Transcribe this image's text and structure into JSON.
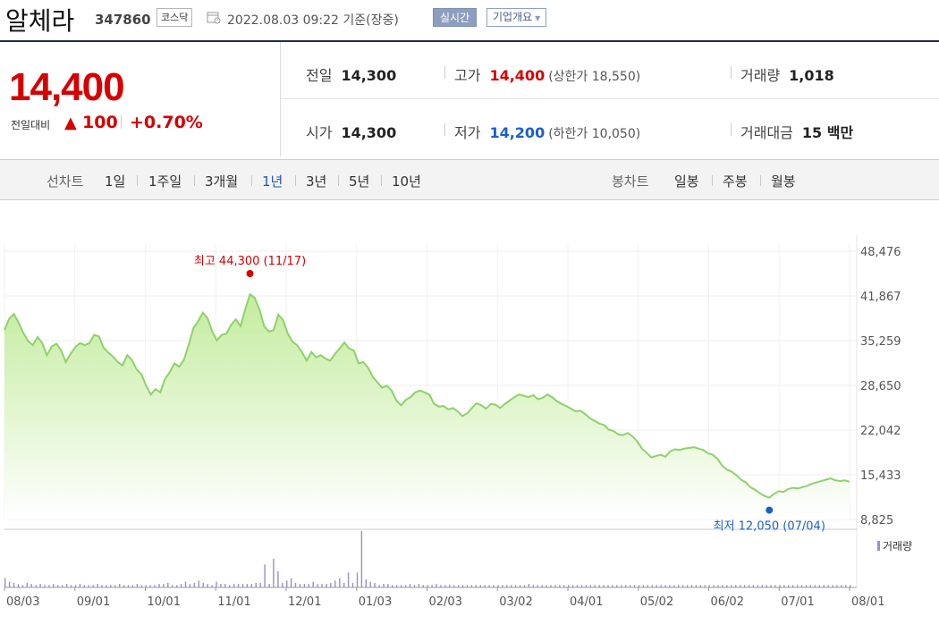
{
  "stock": {
    "name": "알체라",
    "code": "347860",
    "market": "코스닥",
    "datetime": "2022.08.03 09:22",
    "basis": "기준(장중)",
    "realtime_button": "실시간",
    "company_info_button": "기업개요",
    "company_info_arrow": "▼"
  },
  "price": {
    "current": "14,400",
    "compare_label": "전일대비",
    "change_icon": "▲",
    "change": "100",
    "change_pct": "+0.70%"
  },
  "stats": {
    "prev_label": "전일",
    "prev": "14,300",
    "high_label": "고가",
    "high": "14,400",
    "upper_limit": "(상한가 18,550)",
    "volume_label": "거래량",
    "volume": "1,018",
    "open_label": "시가",
    "open": "14,300",
    "low_label": "저가",
    "low": "14,200",
    "lower_limit": "(하한가 10,050)",
    "amount_label": "거래대금",
    "amount": "15 백만"
  },
  "tabs": {
    "line_caption": "선차트",
    "line_periods": [
      "1일",
      "1주일",
      "3개월",
      "1년",
      "3년",
      "5년",
      "10년"
    ],
    "selected": "1년",
    "candle_caption": "봉차트",
    "candle_periods": [
      "일봉",
      "주봉",
      "월봉"
    ]
  },
  "chart_data": {
    "type": "area",
    "x_ticks": [
      "08/03",
      "09/01",
      "10/01",
      "11/01",
      "12/01",
      "01/03",
      "02/03",
      "03/02",
      "04/01",
      "05/02",
      "06/02",
      "07/01",
      "08/01"
    ],
    "y_ticks": [
      "48,476",
      "41,867",
      "35,259",
      "28,650",
      "22,042",
      "15,433",
      "8,825"
    ],
    "ylim": [
      8825,
      48476
    ],
    "high_annotation": "최고 44,300 (11/17)",
    "low_annotation": "최저 12,050 (07/04)",
    "volume_legend": "거래량",
    "colors": {
      "line": "#8fd16a",
      "fill_top": "#c3ec9e",
      "fill_bottom": "#ffffff",
      "high": "#d60000",
      "low": "#1a5fc8",
      "volume": "#9a8fc8"
    },
    "series": [
      {
        "values": [
          36800,
          38500,
          39200,
          37900,
          36400,
          35200,
          34600,
          35800,
          34900,
          33100,
          34400,
          34800,
          33800,
          32100,
          33300,
          34300,
          34900,
          34600,
          34900,
          36100,
          35900,
          34200,
          33500,
          32900,
          32100,
          31600,
          33100,
          32400,
          31000,
          30300,
          28600,
          27300,
          28100,
          27600,
          29600,
          30600,
          31900,
          31400,
          32400,
          34600,
          37100,
          38100,
          39400,
          38600,
          36600,
          35300,
          36100,
          36300,
          37600,
          38400,
          37400,
          39900,
          42100,
          41600,
          39900,
          37400,
          36600,
          36800,
          39100,
          38300,
          36300,
          35100,
          34600,
          33600,
          32300,
          33600,
          32800,
          33100,
          32600,
          32300,
          33300,
          34100,
          35000,
          34100,
          33800,
          31900,
          32100,
          31300,
          29900,
          29100,
          28300,
          28600,
          27900,
          26400,
          25700,
          26500,
          26900,
          27600,
          27900,
          27600,
          27300,
          25900,
          25500,
          25600,
          25100,
          25300,
          24800,
          24100,
          24500,
          25300,
          26000,
          25700,
          25200,
          25900,
          25800,
          25300,
          25900,
          26400,
          26900,
          27300,
          27100,
          26900,
          27200,
          26600,
          26800,
          27300,
          26900,
          26300,
          25900,
          25600,
          25200,
          24800,
          24900,
          24400,
          23800,
          23400,
          23000,
          22800,
          22100,
          21900,
          21400,
          21300,
          21600,
          21100,
          20400,
          19300,
          18700,
          18000,
          18200,
          18400,
          18100,
          18900,
          19200,
          19100,
          19300,
          19400,
          19500,
          19300,
          19100,
          18600,
          18400,
          17800,
          16800,
          16200,
          15900,
          15400,
          14700,
          14300,
          13600,
          13200,
          12700,
          12300,
          12050,
          12600,
          13000,
          12900,
          13300,
          13500,
          13400,
          13600,
          13800,
          14100,
          14300,
          14500,
          14700,
          14900,
          14600,
          14500,
          14600,
          14400
        ]
      }
    ],
    "volume": {
      "values": [
        8,
        5,
        4,
        3,
        2,
        4,
        3,
        2,
        3,
        2,
        2,
        3,
        2,
        2,
        3,
        2,
        2,
        3,
        2,
        2,
        2,
        3,
        2,
        2,
        2,
        2,
        3,
        2,
        2,
        2,
        3,
        2,
        2,
        2,
        2,
        3,
        3,
        4,
        2,
        2,
        3,
        5,
        3,
        4,
        6,
        4,
        3,
        2,
        5,
        3,
        3,
        2,
        3,
        3,
        3,
        3,
        3,
        4,
        4,
        20,
        3,
        25,
        14,
        4,
        6,
        8,
        4,
        3,
        3,
        3,
        5,
        3,
        3,
        3,
        4,
        6,
        8,
        4,
        13,
        4,
        13,
        49,
        7,
        5,
        4,
        2,
        3,
        3,
        2,
        2,
        2,
        2,
        3,
        2,
        3,
        2,
        2,
        2,
        3,
        2,
        2,
        2,
        2,
        2,
        2,
        2,
        2,
        2,
        2,
        2,
        2,
        2,
        2,
        2,
        2,
        2,
        2,
        2,
        2,
        3,
        2,
        2,
        2,
        2,
        2,
        2,
        2,
        2,
        2,
        2,
        2,
        2,
        2,
        2,
        2,
        2,
        2,
        2,
        2,
        2,
        2,
        2,
        2,
        2,
        2,
        2,
        2,
        2,
        2,
        2,
        2,
        2,
        2,
        2,
        2,
        2,
        2,
        2,
        2,
        2,
        2,
        2,
        2,
        2,
        2,
        2,
        2,
        2,
        2,
        2,
        2,
        2,
        2,
        2,
        2,
        2,
        2,
        2,
        2,
        2,
        2,
        2,
        2,
        2,
        2,
        2,
        2,
        2,
        2,
        2,
        2,
        2,
        2
      ]
    }
  }
}
